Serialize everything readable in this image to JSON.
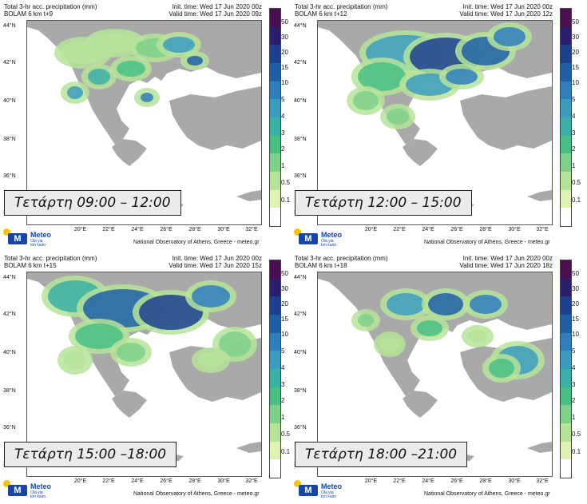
{
  "header": {
    "title_line": "Total 3-hr acc. precipitation (mm)",
    "init_time": "Init. time: Wed 17 Jun 2020 00z"
  },
  "footer": "National Observatory of Athens, Greece - meteo.gr",
  "logo": {
    "name": "Meteo",
    "tagline": "Ola yia\nton kairo"
  },
  "axes": {
    "lat_labels": [
      "44°N",
      "42°N",
      "40°N",
      "38°N",
      "36°N",
      "34°N"
    ],
    "lon_labels": [
      "20°E",
      "22°E",
      "24°E",
      "26°E",
      "28°E",
      "30°E",
      "32°E"
    ]
  },
  "colorbar": {
    "levels": [
      "50",
      "30",
      "20",
      "15",
      "10",
      "5",
      "4",
      "3",
      "2",
      "1",
      "0.5",
      "0.1"
    ],
    "colors": [
      "#4a0f4f",
      "#2a1f6e",
      "#1c3f8f",
      "#1f5fa8",
      "#2e7fbe",
      "#3b9cc0",
      "#3bb0a4",
      "#49bf84",
      "#7fd08a",
      "#b6e39a",
      "#dff2b5",
      "#ffffff"
    ]
  },
  "panels": [
    {
      "model_line": "BOLAM 6 km t+9",
      "valid_time": "Valid time: Wed 17 Jun 2020 09z",
      "period_label": "Τετάρτη 09:00 – 12:00"
    },
    {
      "model_line": "BOLAM 6 km t+12",
      "valid_time": "Valid time: Wed 17 Jun 2020 12z",
      "period_label": "Τετάρτη 12:00 – 15:00"
    },
    {
      "model_line": "BOLAM 6 km t+15",
      "valid_time": "Valid time: Wed 17 Jun 2020 15z",
      "period_label": "Τετάρτη 15:00 –18:00"
    },
    {
      "model_line": "BOLAM 6 km t+18",
      "valid_time": "Valid time: Wed 17 Jun 2020 18z",
      "period_label": "Τετάρτη 18:00 –21:00"
    }
  ],
  "colors": {
    "land": "#a9a9a9",
    "sea": "#ffffff",
    "logo_blue": "#1646a8",
    "logo_yellow": "#f5c400"
  }
}
